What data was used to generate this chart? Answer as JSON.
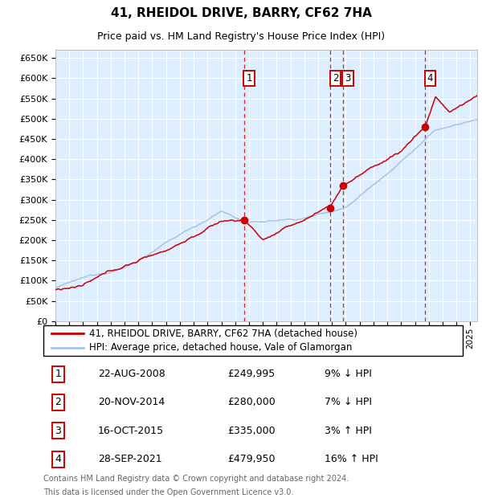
{
  "title": "41, RHEIDOL DRIVE, BARRY, CF62 7HA",
  "subtitle": "Price paid vs. HM Land Registry's House Price Index (HPI)",
  "legend_line1": "41, RHEIDOL DRIVE, BARRY, CF62 7HA (detached house)",
  "legend_line2": "HPI: Average price, detached house, Vale of Glamorgan",
  "footer1": "Contains HM Land Registry data © Crown copyright and database right 2024.",
  "footer2": "This data is licensed under the Open Government Licence v3.0.",
  "hpi_color": "#aac4e0",
  "price_color": "#cc0000",
  "marker_color": "#cc0000",
  "bg_color": "#ddeeff",
  "transactions": [
    {
      "num": 1,
      "date_x": 2008.64,
      "price": 249995
    },
    {
      "num": 2,
      "date_x": 2014.89,
      "price": 280000
    },
    {
      "num": 3,
      "date_x": 2015.79,
      "price": 335000
    },
    {
      "num": 4,
      "date_x": 2021.74,
      "price": 479950
    }
  ],
  "table_rows": [
    {
      "num": 1,
      "date_str": "22-AUG-2008",
      "price_str": "£249,995",
      "pct_str": "9% ↓ HPI"
    },
    {
      "num": 2,
      "date_str": "20-NOV-2014",
      "price_str": "£280,000",
      "pct_str": "7% ↓ HPI"
    },
    {
      "num": 3,
      "date_str": "16-OCT-2015",
      "price_str": "£335,000",
      "pct_str": "3% ↑ HPI"
    },
    {
      "num": 4,
      "date_str": "28-SEP-2021",
      "price_str": "£479,950",
      "pct_str": "16% ↑ HPI"
    }
  ],
  "ylim": [
    0,
    670000
  ],
  "ytick_vals": [
    0,
    50000,
    100000,
    150000,
    200000,
    250000,
    300000,
    350000,
    400000,
    450000,
    500000,
    550000,
    600000,
    650000
  ],
  "xmin": 1995.0,
  "xmax": 2025.5
}
